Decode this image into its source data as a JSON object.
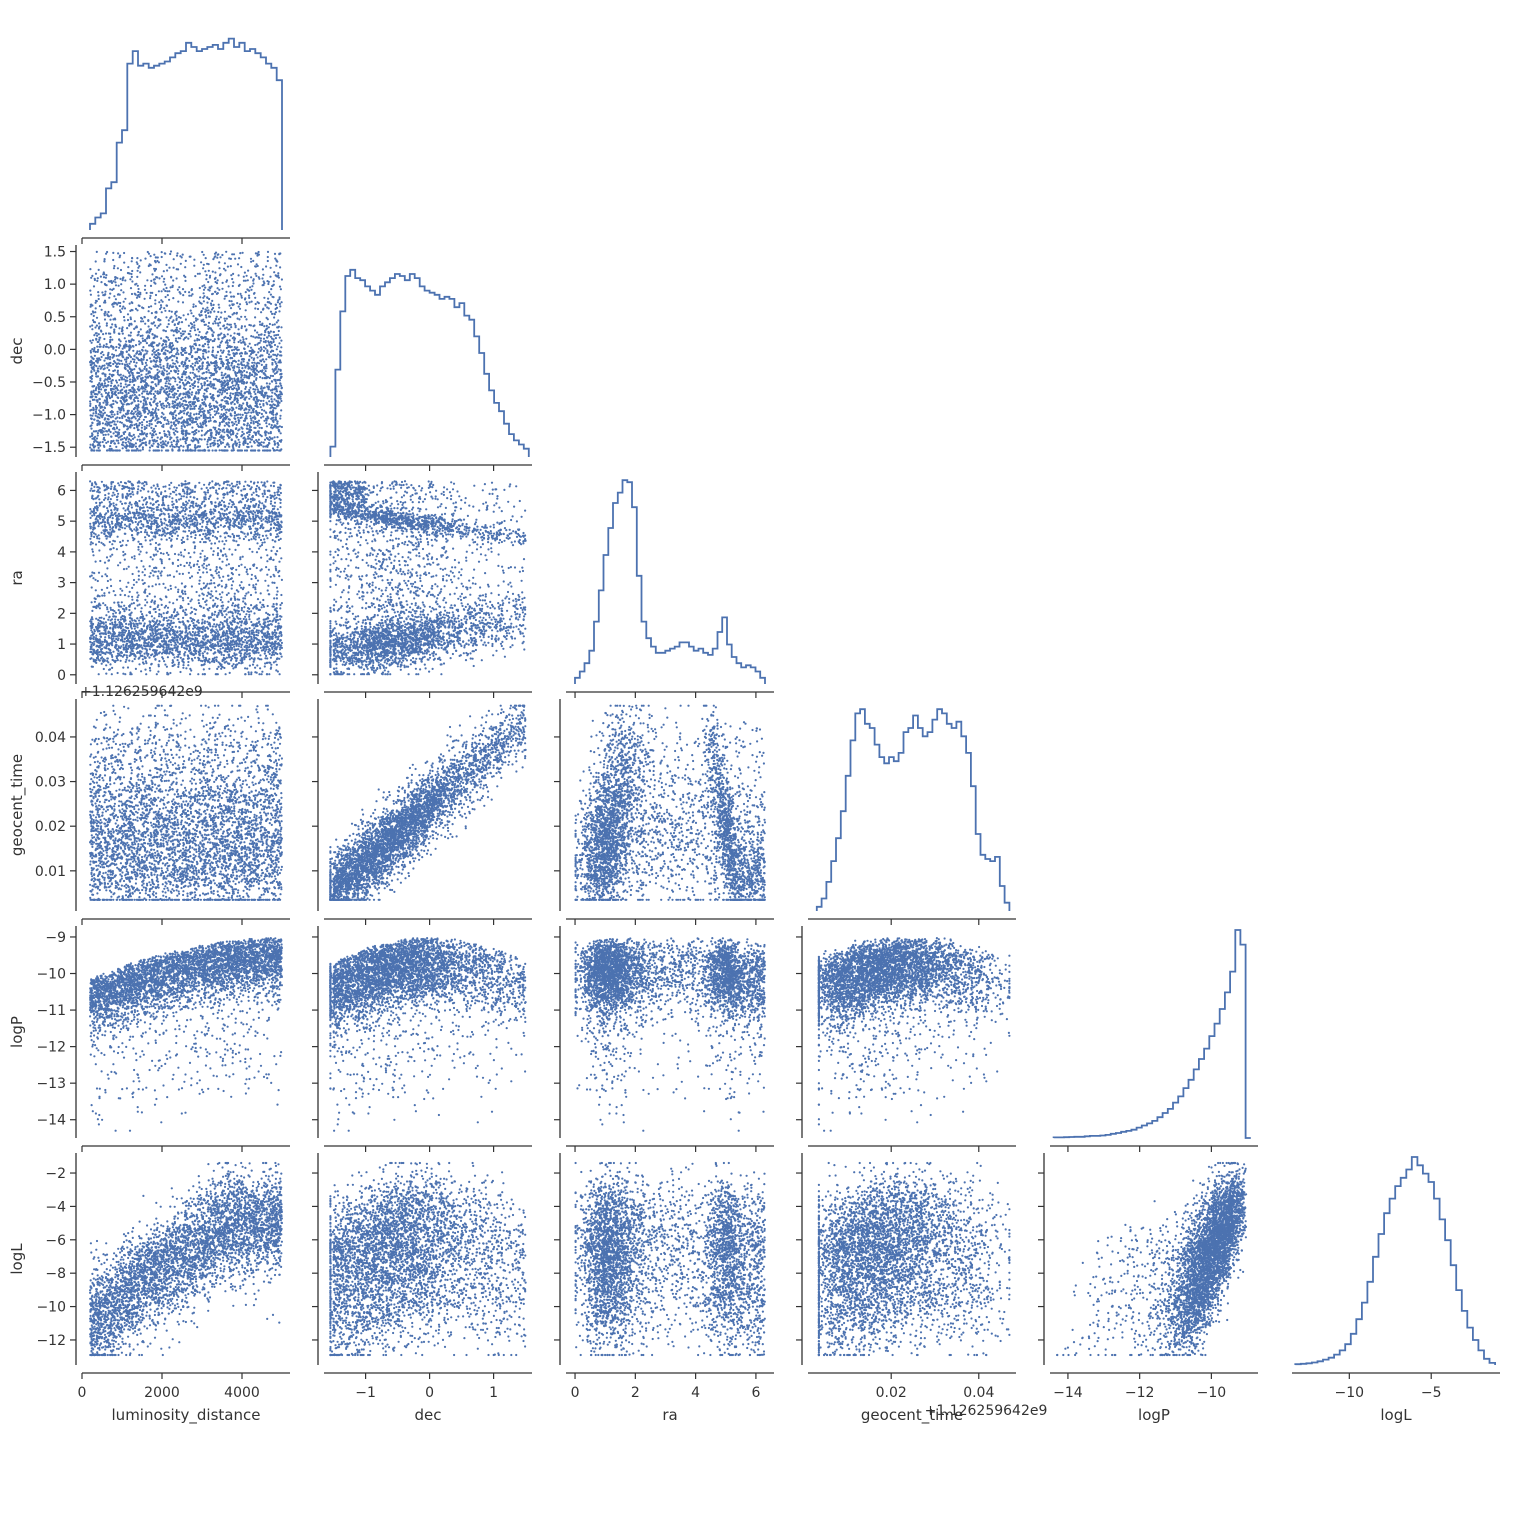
{
  "chart_data": {
    "type": "scatter",
    "layout": "corner-pairplot",
    "diagonal": "step-histogram",
    "color": "#4c72b0",
    "axis_color": "#333333",
    "grid": false,
    "legend": "none",
    "parameters": [
      {
        "name": "luminosity_distance",
        "label": "luminosity_distance",
        "lim": [
          0,
          5200
        ],
        "ticks": [
          0,
          2000,
          4000
        ],
        "tick_labels": [
          "0",
          "2000",
          "4000"
        ],
        "offset_text": ""
      },
      {
        "name": "dec",
        "label": "dec",
        "lim": [
          -1.65,
          1.6
        ],
        "ticks": [
          -1.5,
          -1.0,
          -0.5,
          0.0,
          0.5,
          1.0,
          1.5
        ],
        "tick_labels": [
          "−1.5",
          "−1.0",
          "−0.5",
          "0.0",
          "0.5",
          "1.0",
          "1.5"
        ],
        "xticks": [
          -1,
          0,
          1
        ],
        "xtick_labels": [
          "−1",
          "0",
          "1"
        ],
        "offset_text": ""
      },
      {
        "name": "ra",
        "label": "ra",
        "lim": [
          -0.3,
          6.6
        ],
        "ticks": [
          0,
          1,
          2,
          3,
          4,
          5,
          6
        ],
        "tick_labels": [
          "0",
          "1",
          "2",
          "3",
          "4",
          "5",
          "6"
        ],
        "xticks": [
          0,
          2,
          4,
          6
        ],
        "xtick_labels": [
          "0",
          "2",
          "4",
          "6"
        ],
        "offset_text": ""
      },
      {
        "name": "geocent_time",
        "label": "geocent_time",
        "lim": [
          0.001,
          0.0485
        ],
        "ticks": [
          0.01,
          0.02,
          0.03,
          0.04
        ],
        "tick_labels": [
          "0.01",
          "0.02",
          "0.03",
          "0.04"
        ],
        "xticks": [
          0.02,
          0.04
        ],
        "xtick_labels": [
          "0.02",
          "0.04"
        ],
        "offset_text": "+1.126259642e9"
      },
      {
        "name": "logP",
        "label": "logP",
        "lim": [
          -14.5,
          -8.7
        ],
        "ticks": [
          -14,
          -13,
          -12,
          -11,
          -10,
          -9
        ],
        "tick_labels": [
          "−14",
          "−13",
          "−12",
          "−11",
          "−10",
          "−9"
        ],
        "xticks": [
          -14,
          -12,
          -10
        ],
        "xtick_labels": [
          "−14",
          "−12",
          "−10"
        ],
        "offset_text": ""
      },
      {
        "name": "logL",
        "label": "logL",
        "lim": [
          -13.5,
          -0.8
        ],
        "ticks": [
          -12,
          -10,
          -8,
          -6,
          -4,
          -2
        ],
        "tick_labels": [
          "−12",
          "−10",
          "−8",
          "−6",
          "−4",
          "−2"
        ],
        "xticks": [
          -10,
          -5
        ],
        "xtick_labels": [
          "−10",
          "−5"
        ],
        "offset_text": ""
      }
    ],
    "histograms": [
      {
        "param": "luminosity_distance",
        "range": [
          200,
          5000
        ],
        "counts": [
          0.03,
          0.06,
          0.08,
          0.2,
          0.23,
          0.42,
          0.48,
          0.8,
          0.86,
          0.79,
          0.8,
          0.78,
          0.79,
          0.8,
          0.81,
          0.83,
          0.85,
          0.86,
          0.9,
          0.88,
          0.86,
          0.87,
          0.88,
          0.89,
          0.87,
          0.9,
          0.92,
          0.88,
          0.9,
          0.86,
          0.87,
          0.85,
          0.83,
          0.8,
          0.78,
          0.72
        ]
      },
      {
        "param": "dec",
        "range": [
          -1.55,
          1.55
        ],
        "counts": [
          0.05,
          0.42,
          0.7,
          0.87,
          0.9,
          0.86,
          0.85,
          0.82,
          0.8,
          0.78,
          0.82,
          0.84,
          0.86,
          0.88,
          0.87,
          0.85,
          0.88,
          0.86,
          0.82,
          0.8,
          0.79,
          0.78,
          0.76,
          0.77,
          0.76,
          0.72,
          0.74,
          0.68,
          0.66,
          0.58,
          0.5,
          0.4,
          0.32,
          0.26,
          0.22,
          0.16,
          0.11,
          0.08,
          0.06,
          0.04
        ]
      },
      {
        "param": "ra",
        "range": [
          0,
          6.3
        ],
        "counts": [
          0.03,
          0.06,
          0.1,
          0.16,
          0.3,
          0.45,
          0.62,
          0.75,
          0.87,
          0.92,
          0.98,
          0.97,
          0.85,
          0.52,
          0.3,
          0.22,
          0.18,
          0.15,
          0.15,
          0.16,
          0.17,
          0.18,
          0.2,
          0.2,
          0.18,
          0.16,
          0.17,
          0.15,
          0.14,
          0.17,
          0.25,
          0.32,
          0.19,
          0.13,
          0.1,
          0.08,
          0.09,
          0.08,
          0.06,
          0.03
        ]
      },
      {
        "param": "geocent_time",
        "range": [
          0.003,
          0.047
        ],
        "counts": [
          0.02,
          0.06,
          0.14,
          0.24,
          0.35,
          0.48,
          0.65,
          0.82,
          0.95,
          0.97,
          0.9,
          0.88,
          0.8,
          0.74,
          0.71,
          0.74,
          0.72,
          0.76,
          0.86,
          0.88,
          0.94,
          0.88,
          0.84,
          0.86,
          0.92,
          0.97,
          0.95,
          0.9,
          0.88,
          0.91,
          0.84,
          0.76,
          0.6,
          0.37,
          0.27,
          0.25,
          0.24,
          0.26,
          0.12,
          0.04
        ]
      },
      {
        "param": "logP",
        "range": [
          -14.4,
          -8.9
        ],
        "counts": [
          0.003,
          0.003,
          0.004,
          0.005,
          0.006,
          0.006,
          0.008,
          0.01,
          0.01,
          0.012,
          0.015,
          0.02,
          0.024,
          0.03,
          0.034,
          0.04,
          0.05,
          0.06,
          0.07,
          0.082,
          0.1,
          0.12,
          0.14,
          0.17,
          0.2,
          0.24,
          0.28,
          0.33,
          0.38,
          0.43,
          0.49,
          0.55,
          0.62,
          0.7,
          0.8,
          1.0,
          0.93,
          0.0
        ]
      },
      {
        "param": "logL",
        "range": [
          -13.3,
          -1.1
        ],
        "counts": [
          0.004,
          0.006,
          0.008,
          0.012,
          0.018,
          0.026,
          0.035,
          0.05,
          0.07,
          0.1,
          0.15,
          0.22,
          0.3,
          0.4,
          0.52,
          0.63,
          0.73,
          0.8,
          0.86,
          0.9,
          0.94,
          1.0,
          0.96,
          0.92,
          0.88,
          0.8,
          0.7,
          0.6,
          0.48,
          0.36,
          0.26,
          0.18,
          0.12,
          0.07,
          0.03,
          0.01
        ]
      }
    ]
  }
}
